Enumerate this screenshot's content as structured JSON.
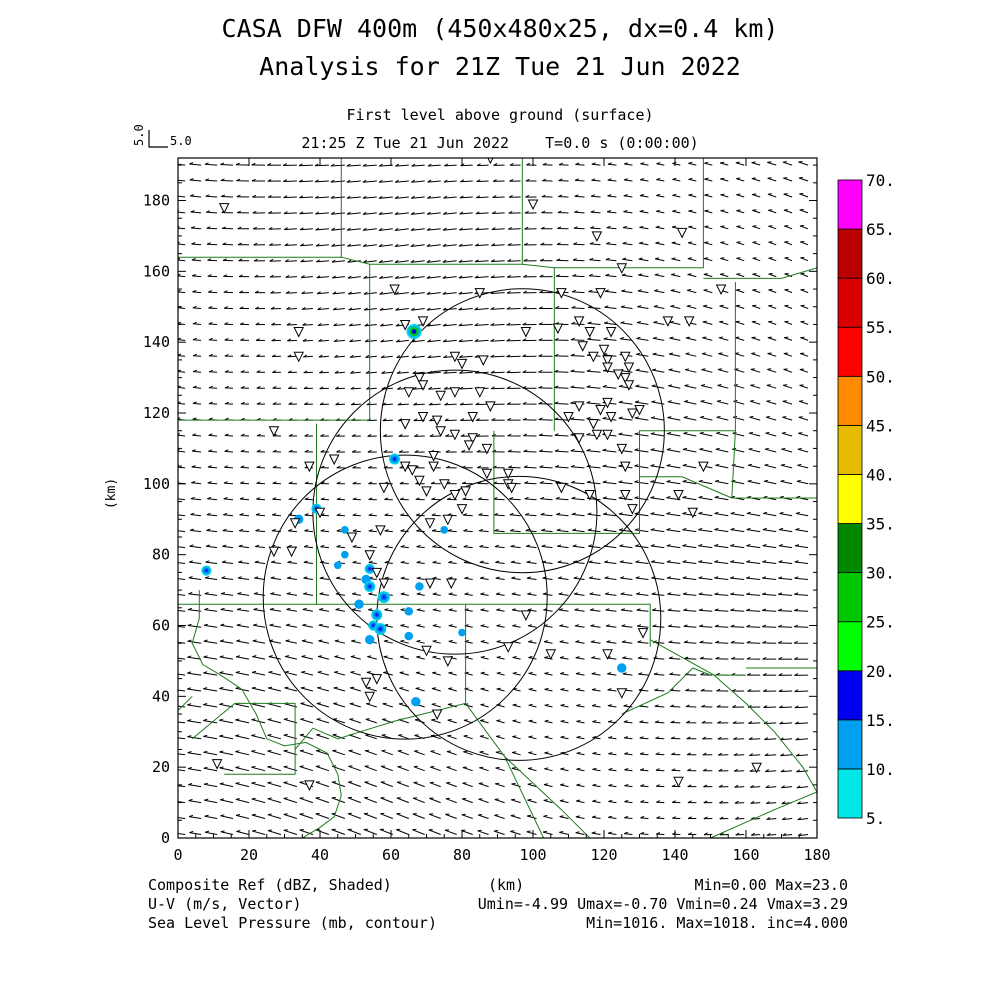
{
  "chart_data": {
    "type": "heatmap",
    "title": "CASA DFW 400m (450x480x25, dx=0.4 km)",
    "subtitle": "Analysis for 21Z Tue 21 Jun 2022",
    "level": "First level above ground (surface)",
    "time_line": "21:25 Z Tue 21 Jun 2022    T=0.0 s (0:00:00)",
    "ref_vector": {
      "label_vertical": "5.0",
      "label": "5.0"
    },
    "xlabel": "(km)",
    "ylabel": "(km)",
    "xlim": [
      0,
      180
    ],
    "ylim": [
      0,
      192
    ],
    "xticks": [
      0,
      20,
      40,
      60,
      80,
      100,
      120,
      140,
      160,
      180
    ],
    "yticks": [
      0,
      20,
      40,
      60,
      80,
      100,
      120,
      140,
      160,
      180
    ],
    "colorbar": {
      "levels": [
        "5.",
        "10.",
        "15.",
        "20.",
        "25.",
        "30.",
        "35.",
        "40.",
        "45.",
        "50.",
        "55.",
        "60.",
        "65.",
        "70."
      ],
      "colors": [
        "#00e8e8",
        "#00a0f0",
        "#0000f0",
        "#00ff00",
        "#00c800",
        "#008800",
        "#ffff00",
        "#e6bc00",
        "#ff8c00",
        "#ff0000",
        "#d80000",
        "#b80000",
        "#ff00ff"
      ]
    },
    "reflectivity_cells": [
      {
        "x": 66.5,
        "y": 143,
        "dbz": 23
      },
      {
        "x": 61,
        "y": 107,
        "dbz": 14
      },
      {
        "x": 39,
        "y": 93,
        "dbz": 12
      },
      {
        "x": 34,
        "y": 90,
        "dbz": 10
      },
      {
        "x": 8,
        "y": 75.5,
        "dbz": 12
      },
      {
        "x": 54,
        "y": 76,
        "dbz": 12
      },
      {
        "x": 53,
        "y": 73,
        "dbz": 10
      },
      {
        "x": 54,
        "y": 71,
        "dbz": 14
      },
      {
        "x": 58,
        "y": 68,
        "dbz": 16
      },
      {
        "x": 51,
        "y": 66,
        "dbz": 10
      },
      {
        "x": 56,
        "y": 63,
        "dbz": 14
      },
      {
        "x": 55,
        "y": 60,
        "dbz": 12
      },
      {
        "x": 57,
        "y": 59,
        "dbz": 16
      },
      {
        "x": 54,
        "y": 56,
        "dbz": 10
      },
      {
        "x": 65,
        "y": 64,
        "dbz": 8
      },
      {
        "x": 65,
        "y": 57,
        "dbz": 8
      },
      {
        "x": 68,
        "y": 71,
        "dbz": 8
      },
      {
        "x": 47,
        "y": 87,
        "dbz": 6
      },
      {
        "x": 47,
        "y": 80,
        "dbz": 6
      },
      {
        "x": 45,
        "y": 77,
        "dbz": 6
      },
      {
        "x": 75,
        "y": 87,
        "dbz": 6
      },
      {
        "x": 80,
        "y": 58,
        "dbz": 6
      },
      {
        "x": 125,
        "y": 48,
        "dbz": 10
      },
      {
        "x": 67,
        "y": 38.5,
        "dbz": 10
      }
    ],
    "radar_rings": [
      {
        "x": 97,
        "y": 115,
        "r": 40
      },
      {
        "x": 78,
        "y": 92,
        "r": 40
      },
      {
        "x": 64,
        "y": 68,
        "r": 40
      },
      {
        "x": 96,
        "y": 62,
        "r": 40
      }
    ],
    "station_symbols": "inverted-triangle",
    "wind_field": {
      "u_min": -4.99,
      "u_max": -0.7,
      "v_min": 0.24,
      "v_max": 3.29,
      "units": "m/s"
    },
    "pressure": {
      "min": 1016,
      "max": 1018,
      "inc": 4.0,
      "units": "mb"
    }
  },
  "footer": {
    "left1": "Composite Ref (dBZ, Shaded)",
    "left2": "U-V (m/s, Vector)",
    "left3": "Sea Level Pressure (mb, contour)",
    "center": "(km)",
    "right1": "Min=0.00 Max=23.0",
    "right2": "Umin=-4.99 Umax=-0.70 Vmin=0.24 Vmax=3.29",
    "right3": "Min=1016. Max=1018. inc=4.000"
  },
  "colors": {
    "boundary": "#1f7a1f",
    "ring": "#000000",
    "arrow": "#000000"
  }
}
